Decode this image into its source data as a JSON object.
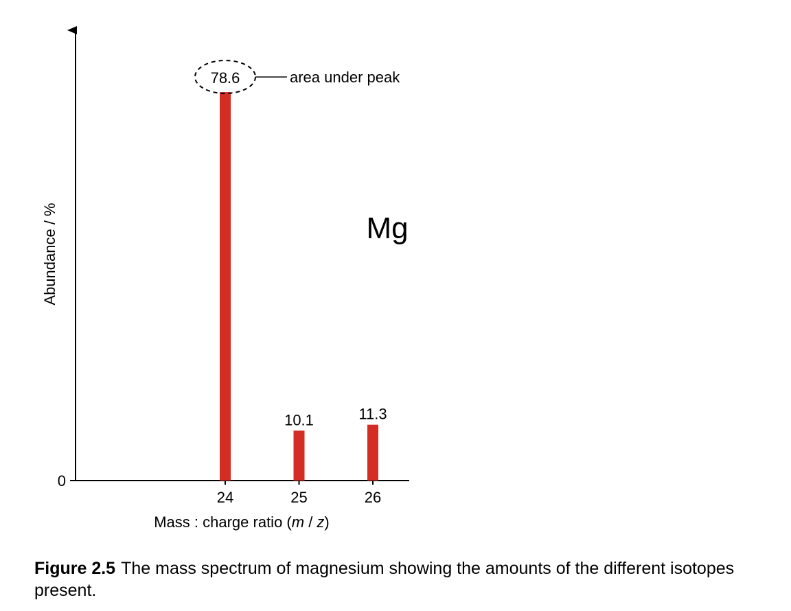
{
  "chart_data": {
    "type": "bar",
    "categories": [
      "24",
      "25",
      "26"
    ],
    "values": [
      78.6,
      10.1,
      11.3
    ],
    "data_labels": [
      "78.6",
      "10.1",
      "11.3"
    ],
    "ylabel": "Abundance / %",
    "xlabel_parts": [
      "Mass : charge ratio (",
      "m",
      " / ",
      "z",
      ")"
    ],
    "ytick_label": "0",
    "ylim": [
      0,
      100
    ],
    "element_label": "Mg",
    "annotation": {
      "text": "area under peak",
      "target_category": "24"
    },
    "bar_color": "#d42e24",
    "grid": false,
    "legend": "none"
  },
  "caption": {
    "figure_number": "Figure 2.5",
    "text": "The mass spectrum of magnesium showing the amounts of the different isotopes present."
  }
}
